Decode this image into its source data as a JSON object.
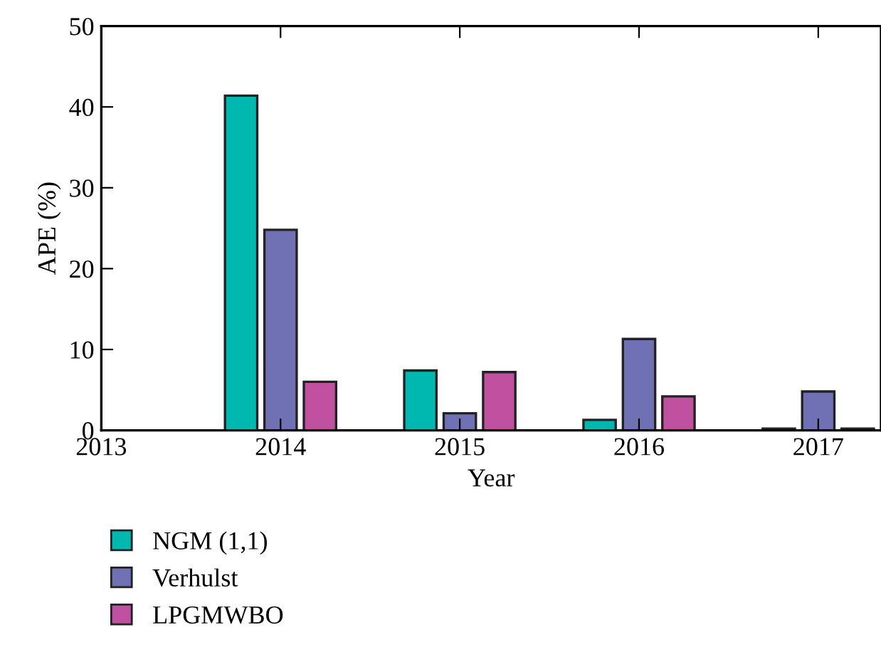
{
  "chart_data": {
    "type": "bar",
    "xlabel": "Year",
    "ylabel": "APE (%)",
    "xlim": [
      2013,
      2017.35
    ],
    "xticks": [
      2013,
      2014,
      2015,
      2016,
      2017
    ],
    "ylim": [
      0,
      50
    ],
    "yticks": [
      0,
      10,
      20,
      30,
      40,
      50
    ],
    "grid": false,
    "legend": "bottom",
    "series": [
      {
        "name": "NGM (1,1)",
        "color": "#00b8b0",
        "x": [
          2013.78,
          2014.78,
          2015.78,
          2016.78
        ],
        "values": [
          41.4,
          7.4,
          1.3,
          0.2
        ]
      },
      {
        "name": "Verhulst",
        "color": "#7070b4",
        "x": [
          2014.0,
          2015.0,
          2016.0,
          2017.0
        ],
        "values": [
          24.8,
          2.1,
          11.3,
          4.8
        ]
      },
      {
        "name": "LPGMWBO",
        "color": "#c050a0",
        "x": [
          2014.22,
          2015.22,
          2016.22,
          2017.22
        ],
        "values": [
          6.0,
          7.2,
          4.2,
          0.2
        ]
      }
    ]
  }
}
